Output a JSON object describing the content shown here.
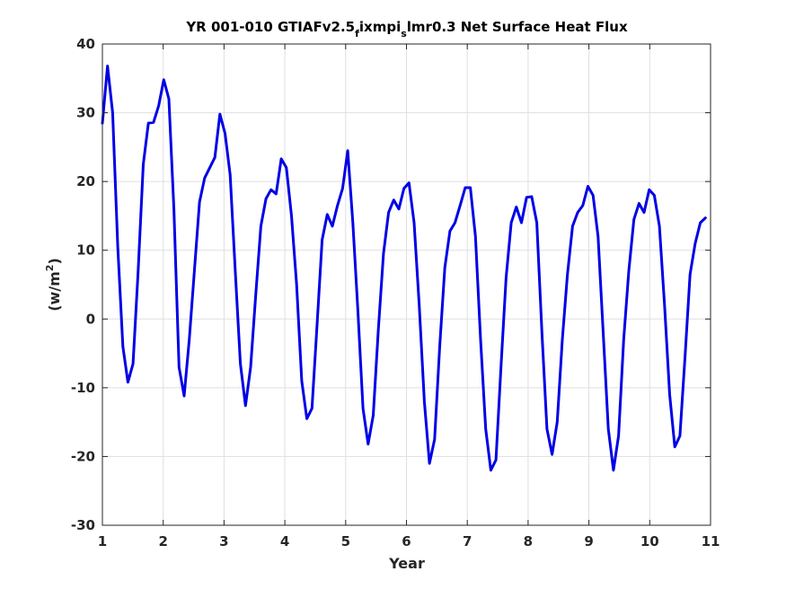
{
  "chart_data": {
    "type": "line",
    "title": {
      "part1": "YR 001-010 GTIAFv2.5",
      "sub1": "f",
      "part2": "ixmpi",
      "sub2": "s",
      "part3": "lmr0.3 Net Surface Heat Flux"
    },
    "xlabel": "Year",
    "ylabel": {
      "prefix": "(w/m",
      "sup": "2",
      "suffix": ")"
    },
    "xlim": [
      1,
      11
    ],
    "ylim": [
      -30,
      40
    ],
    "xticks": [
      1,
      2,
      3,
      4,
      5,
      6,
      7,
      8,
      9,
      10,
      11
    ],
    "yticks": [
      -30,
      -20,
      -10,
      0,
      10,
      20,
      30,
      40
    ],
    "grid": true,
    "line_color": "#0000e6",
    "series": [
      {
        "values": [
          28.5,
          36.8,
          30.0,
          10.5,
          -4.0,
          -9.2,
          -6.5,
          7.0,
          22.5,
          28.5,
          28.6,
          31.0,
          34.8,
          32.0,
          16.0,
          -7.0,
          -11.2,
          -3.0,
          7.0,
          17.0,
          20.5,
          22.0,
          23.5,
          29.8,
          27.0,
          21.0,
          7.0,
          -6.5,
          -12.6,
          -7.0,
          3.5,
          13.5,
          17.5,
          18.8,
          18.2,
          23.3,
          22.0,
          15.0,
          5.0,
          -9.0,
          -14.5,
          -13.0,
          -1.0,
          11.5,
          15.2,
          13.5,
          16.5,
          19.0,
          24.5,
          14.0,
          1.0,
          -13.0,
          -18.2,
          -14.0,
          -1.5,
          9.5,
          15.5,
          17.3,
          16.0,
          19.0,
          19.8,
          14.0,
          2.0,
          -12.0,
          -21.0,
          -17.5,
          -4.0,
          7.5,
          12.8,
          14.0,
          16.5,
          19.1,
          19.1,
          12.0,
          -3.0,
          -16.0,
          -22.0,
          -20.5,
          -7.0,
          6.0,
          14.0,
          16.3,
          14.0,
          17.7,
          17.8,
          14.0,
          -2.0,
          -16.0,
          -19.7,
          -15.0,
          -3.0,
          6.5,
          13.5,
          15.5,
          16.5,
          19.3,
          18.0,
          12.0,
          -2.0,
          -16.0,
          -22.0,
          -17.0,
          -3.0,
          7.0,
          14.5,
          16.8,
          15.5,
          18.8,
          18.0,
          13.5,
          2.0,
          -11.0,
          -18.6,
          -17.0,
          -5.5,
          6.5,
          11.0,
          14.0,
          14.7
        ]
      }
    ]
  }
}
